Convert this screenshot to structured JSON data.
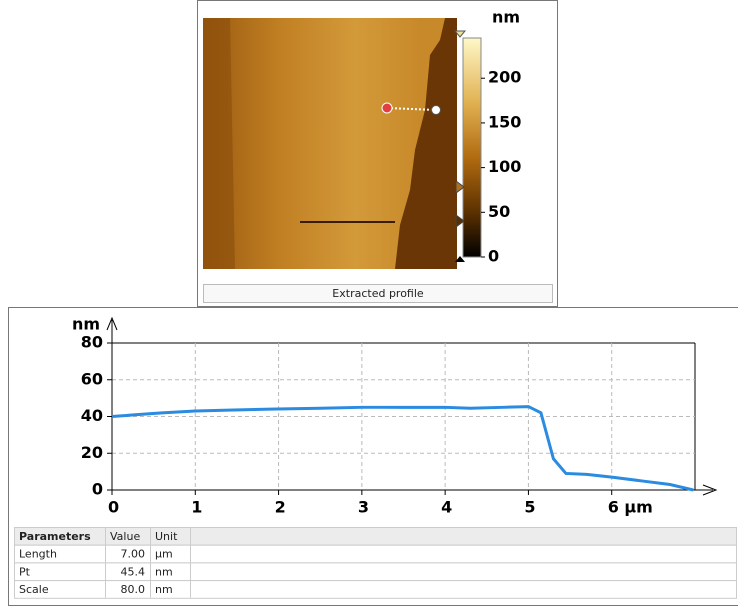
{
  "image_panel": {
    "color_scale": {
      "unit": "nm",
      "lim": [
        0,
        245
      ],
      "ticks": [
        0,
        50,
        100,
        150,
        200
      ]
    },
    "button": "Extracted profile"
  },
  "chart_data": {
    "type": "line",
    "y_label": "nm",
    "x": [
      0,
      0.3,
      0.6,
      1,
      1.4,
      1.9,
      2.5,
      3,
      3.5,
      4,
      4.3,
      4.7,
      5,
      5.15,
      5.3,
      5.45,
      5.7,
      6,
      6.35,
      6.7,
      6.98
    ],
    "series": [
      {
        "color": "#2a8be0",
        "values": [
          40,
          41,
          42,
          43,
          43.5,
          44,
          44.5,
          45,
          45,
          45,
          44.5,
          45,
          45.4,
          42,
          17,
          9,
          8.5,
          7,
          5,
          3,
          0
        ]
      }
    ],
    "xlim": [
      0,
      7
    ],
    "ylim": [
      0,
      80
    ],
    "xticks": [
      0,
      1,
      2,
      3,
      4,
      5,
      {
        "value": 6,
        "label": "6 µm"
      }
    ],
    "yticks": [
      0,
      20,
      40,
      60,
      80
    ],
    "grid": true
  },
  "table": {
    "header": [
      "Parameters",
      "Value",
      "Unit"
    ],
    "rows": [
      [
        "Length",
        "7.00",
        "µm"
      ],
      [
        "Pt",
        "45.4",
        "nm"
      ],
      [
        "Scale",
        "80.0",
        "nm"
      ]
    ]
  }
}
